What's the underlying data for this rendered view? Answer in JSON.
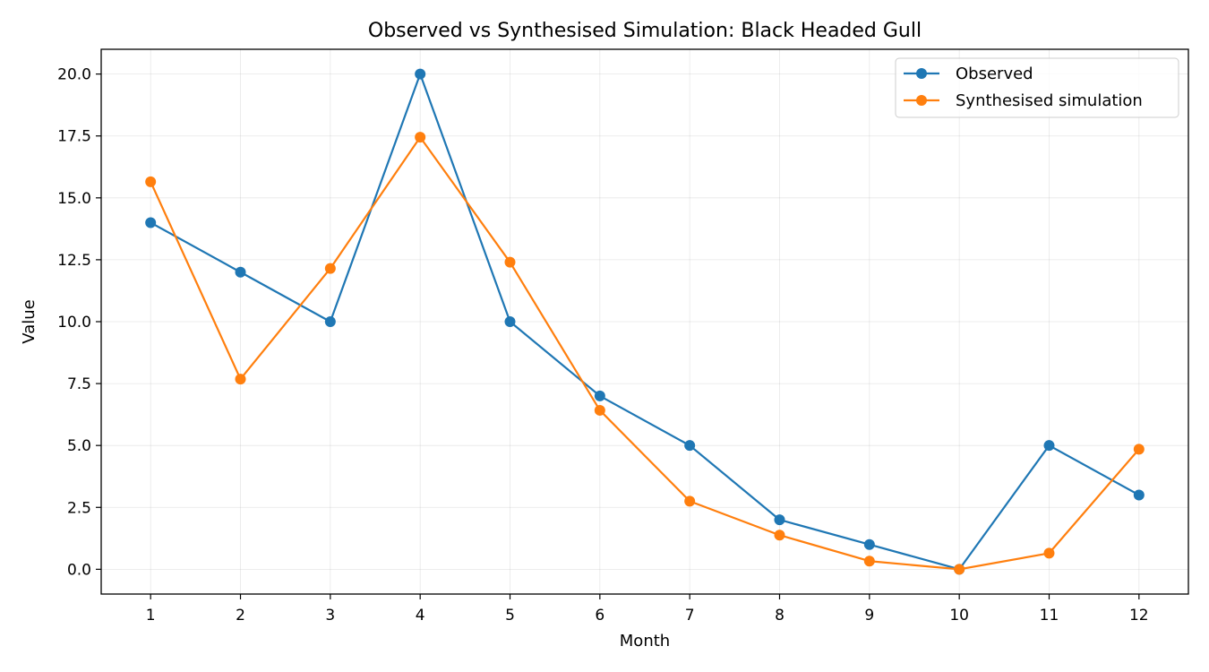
{
  "chart_data": {
    "type": "line",
    "title": "Observed vs Synthesised Simulation: Black Headed Gull",
    "xlabel": "Month",
    "ylabel": "Value",
    "x": [
      1,
      2,
      3,
      4,
      5,
      6,
      7,
      8,
      9,
      10,
      11,
      12
    ],
    "xtick_labels": [
      "1",
      "2",
      "3",
      "4",
      "5",
      "6",
      "7",
      "8",
      "9",
      "10",
      "11",
      "12"
    ],
    "ytick_labels": [
      "0.0",
      "2.5",
      "5.0",
      "7.5",
      "10.0",
      "12.5",
      "15.0",
      "17.5",
      "20.0"
    ],
    "yticks": [
      0,
      2.5,
      5,
      7.5,
      10,
      12.5,
      15,
      17.5,
      20
    ],
    "xlim": [
      0.45,
      12.55
    ],
    "ylim": [
      -1.0,
      21.0
    ],
    "grid": true,
    "legend_position": "top-right",
    "series": [
      {
        "name": "Observed",
        "color": "#1f77b4",
        "values": [
          14,
          12,
          10,
          20,
          10,
          7,
          5,
          2,
          1,
          0,
          5,
          3
        ]
      },
      {
        "name": "Synthesised simulation",
        "color": "#ff7f0e",
        "values": [
          15.65,
          7.68,
          12.15,
          17.45,
          12.4,
          6.42,
          2.75,
          1.38,
          0.33,
          0.0,
          0.65,
          4.85
        ]
      }
    ]
  }
}
